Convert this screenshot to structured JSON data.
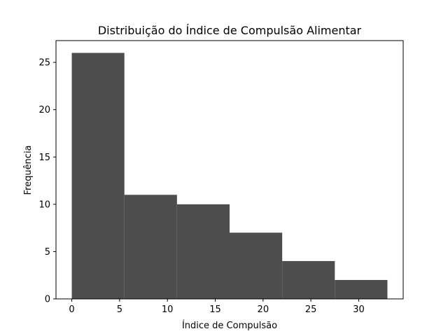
{
  "chart_data": {
    "type": "bar",
    "subtype": "histogram",
    "title": "Distribuição do Índice de Compulsão Alimentar",
    "xlabel": "Índice de Compulsão",
    "ylabel": "Frequência",
    "bins": [
      {
        "x0": 0.0,
        "x1": 5.5,
        "count": 26
      },
      {
        "x0": 5.5,
        "x1": 11.0,
        "count": 11
      },
      {
        "x0": 11.0,
        "x1": 16.5,
        "count": 10
      },
      {
        "x0": 16.5,
        "x1": 22.0,
        "count": 7
      },
      {
        "x0": 22.0,
        "x1": 27.5,
        "count": 4
      },
      {
        "x0": 27.5,
        "x1": 33.0,
        "count": 2
      }
    ],
    "xlim": [
      -1.65,
      34.65
    ],
    "ylim": [
      0,
      27.3
    ],
    "xticks": [
      0,
      5,
      10,
      15,
      20,
      25,
      30
    ],
    "yticks": [
      0,
      5,
      10,
      15,
      20,
      25
    ],
    "grid": false,
    "colors": {
      "bar": "#4d4d4d",
      "axes": "#000000"
    }
  }
}
